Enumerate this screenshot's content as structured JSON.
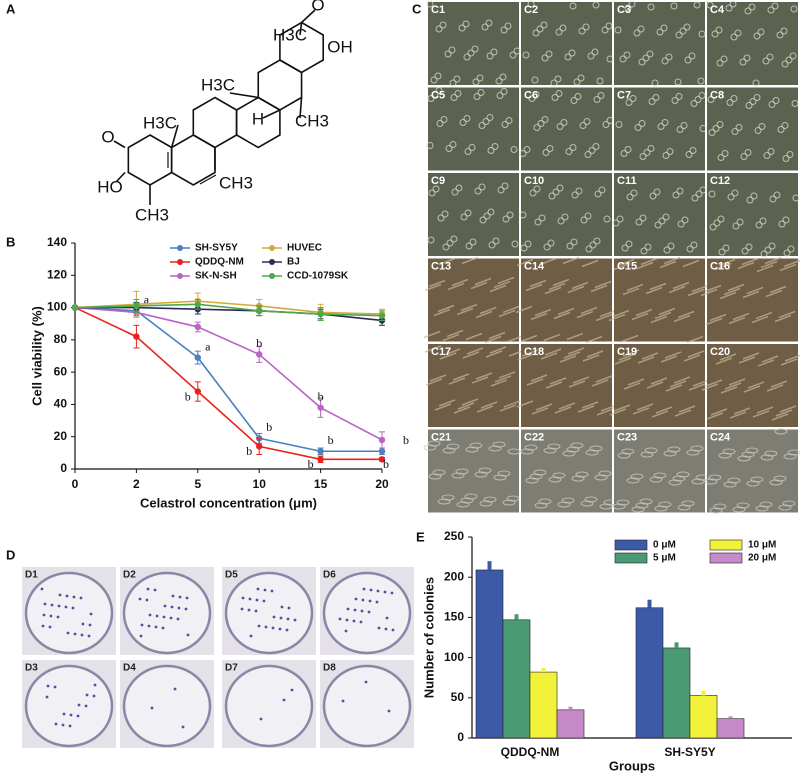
{
  "panel_labels": [
    "A",
    "B",
    "C",
    "D",
    "E"
  ],
  "structure": {
    "atoms": [
      "O",
      "HO",
      "CH3",
      "H3C",
      "H3C",
      "H",
      "CH3",
      "CH3",
      "H3C",
      "O",
      "OH"
    ]
  },
  "micrographs": {
    "labels": [
      "C1",
      "C2",
      "C3",
      "C4",
      "C5",
      "C6",
      "C7",
      "C8",
      "C9",
      "C10",
      "C11",
      "C12",
      "C13",
      "C14",
      "C15",
      "C16",
      "C17",
      "C18",
      "C19",
      "C20",
      "C21",
      "C22",
      "C23",
      "C24"
    ]
  },
  "plates": {
    "labels": [
      "D1",
      "D2",
      "D5",
      "D6",
      "D3",
      "D4",
      "D7",
      "D8"
    ]
  },
  "chart_data": [
    {
      "type": "line",
      "x_label": "Celastrol concentration (μm)",
      "y_label": "Cell viability (%)",
      "categories": [
        "0",
        "2",
        "5",
        "10",
        "15",
        "20"
      ],
      "ylim": [
        0,
        140
      ],
      "yticks": [
        0,
        20,
        40,
        60,
        80,
        100,
        120,
        140
      ],
      "series": [
        {
          "name": "SH-SY5Y",
          "color": "#4a7fc1",
          "values": [
            100,
            98,
            69,
            19,
            11,
            11
          ],
          "errors": [
            0,
            3,
            4,
            3,
            2,
            2
          ],
          "point_labels": [
            null,
            "a",
            "a",
            "b",
            "b",
            "b"
          ]
        },
        {
          "name": "QDDQ-NM",
          "color": "#e8231c",
          "values": [
            100,
            82,
            48,
            14,
            6,
            6
          ],
          "errors": [
            0,
            7,
            6,
            5,
            2,
            1
          ],
          "point_labels": [
            null,
            null,
            "b",
            "b",
            "b",
            "b"
          ]
        },
        {
          "name": "SK-N-SH",
          "color": "#b865c4",
          "values": [
            100,
            97,
            88,
            71,
            38,
            18
          ],
          "errors": [
            0,
            3,
            3,
            5,
            6,
            5
          ],
          "point_labels": [
            null,
            null,
            null,
            "b",
            "b",
            null
          ]
        },
        {
          "name": "HUVEC",
          "color": "#d4a93c",
          "values": [
            100,
            102,
            104,
            101,
            97,
            96
          ],
          "errors": [
            0,
            8,
            5,
            4,
            5,
            3
          ],
          "point_labels": [
            null,
            null,
            null,
            null,
            null,
            null
          ]
        },
        {
          "name": "BJ",
          "color": "#2e2a5a",
          "values": [
            100,
            100,
            99,
            98,
            96,
            92
          ],
          "errors": [
            0,
            3,
            3,
            3,
            3,
            3
          ],
          "point_labels": [
            null,
            null,
            null,
            null,
            null,
            null
          ]
        },
        {
          "name": "CCD-1079SK",
          "color": "#4caa4a",
          "values": [
            100,
            101,
            102,
            98,
            96,
            95
          ],
          "errors": [
            0,
            4,
            3,
            3,
            4,
            3
          ],
          "point_labels": [
            null,
            null,
            null,
            null,
            null,
            null
          ]
        }
      ]
    },
    {
      "type": "bar",
      "x_label": "Groups",
      "y_label": "Number of colonies",
      "categories": [
        "QDDQ-NM",
        "SH-SY5Y"
      ],
      "ylim": [
        0,
        250
      ],
      "yticks": [
        0,
        50,
        100,
        150,
        200,
        250
      ],
      "series": [
        {
          "name": "0 μM",
          "color": "#3d5aa8",
          "values": [
            209,
            162
          ],
          "errors": [
            11,
            10
          ]
        },
        {
          "name": "5 μM",
          "color": "#4a9a74",
          "values": [
            147,
            112
          ],
          "errors": [
            7,
            7
          ]
        },
        {
          "name": "10 μM",
          "color": "#f2f23a",
          "values": [
            82,
            53
          ],
          "errors": [
            5,
            6
          ]
        },
        {
          "name": "20 μM",
          "color": "#c78ac8",
          "values": [
            35,
            24
          ],
          "errors": [
            4,
            3
          ]
        }
      ]
    }
  ]
}
